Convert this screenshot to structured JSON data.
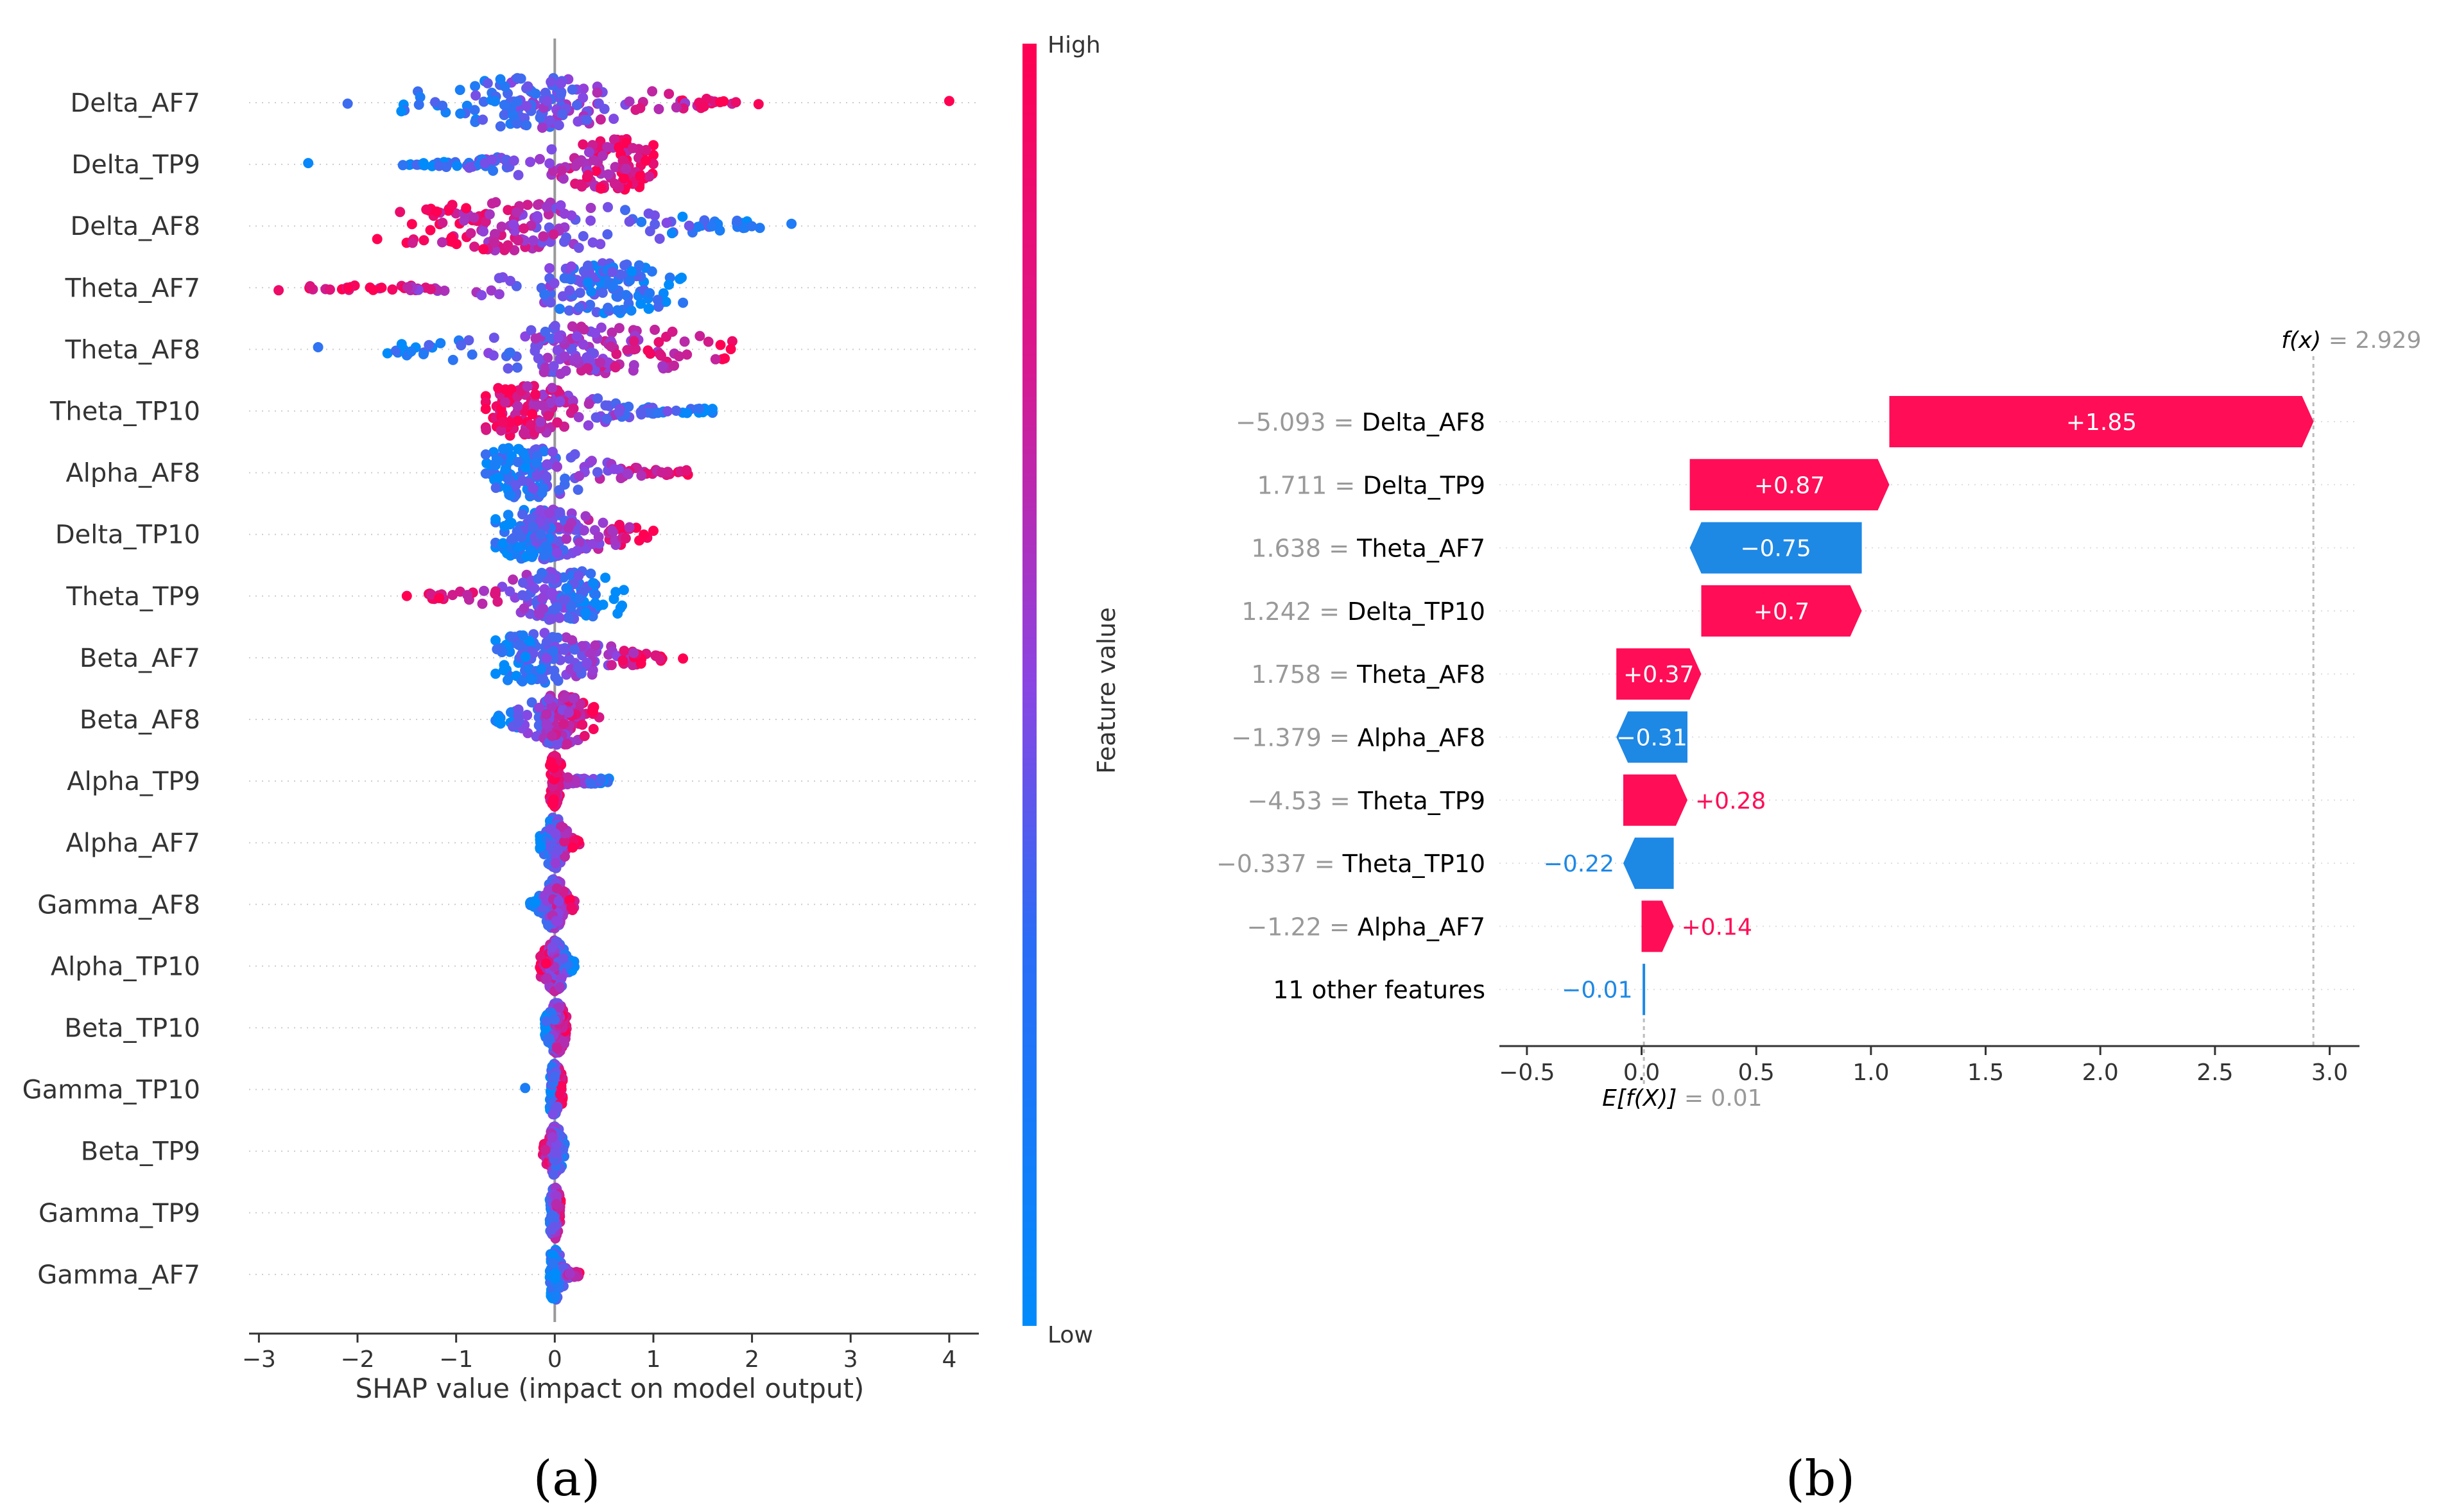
{
  "chart_data": [
    {
      "type": "scatter",
      "subtype": "shap-beeswarm",
      "panel_label": "(a)",
      "features": [
        "Delta_AF7",
        "Delta_TP9",
        "Delta_AF8",
        "Theta_AF7",
        "Theta_AF8",
        "Theta_TP10",
        "Alpha_AF8",
        "Delta_TP10",
        "Theta_TP9",
        "Beta_AF7",
        "Beta_AF8",
        "Alpha_TP9",
        "Alpha_AF7",
        "Gamma_AF8",
        "Alpha_TP10",
        "Beta_TP10",
        "Gamma_TP10",
        "Beta_TP9",
        "Gamma_TP9",
        "Gamma_AF7"
      ],
      "distributions": [
        {
          "min": -2.1,
          "max": 4.0,
          "dense_low": -1.6,
          "dense_high": 2.1,
          "center": -0.2,
          "width": 0.45,
          "high_side": "right"
        },
        {
          "min": -2.5,
          "max": 1.0,
          "dense_low": -1.6,
          "dense_high": 0.95,
          "center": 0.6,
          "width": 0.35,
          "high_side": "right"
        },
        {
          "min": -1.8,
          "max": 2.4,
          "dense_low": -1.6,
          "dense_high": 2.1,
          "center": -0.4,
          "width": 0.6,
          "high_side": "left"
        },
        {
          "min": -2.8,
          "max": 1.3,
          "dense_low": -2.5,
          "dense_high": 1.3,
          "center": 0.5,
          "width": 0.4,
          "high_side": "left"
        },
        {
          "min": -2.4,
          "max": 1.8,
          "dense_low": -1.7,
          "dense_high": 1.8,
          "center": 0.3,
          "width": 0.5,
          "high_side": "right"
        },
        {
          "min": -0.7,
          "max": 1.6,
          "dense_low": -0.6,
          "dense_high": 1.6,
          "center": -0.3,
          "width": 0.3,
          "high_side": "left"
        },
        {
          "min": -0.7,
          "max": 1.35,
          "dense_low": -0.7,
          "dense_high": 1.35,
          "center": -0.3,
          "width": 0.3,
          "high_side": "right"
        },
        {
          "min": -0.6,
          "max": 1.0,
          "dense_low": -0.55,
          "dense_high": 0.95,
          "center": -0.15,
          "width": 0.3,
          "high_side": "right"
        },
        {
          "min": -1.5,
          "max": 0.7,
          "dense_low": -1.3,
          "dense_high": 0.7,
          "center": 0.1,
          "width": 0.3,
          "high_side": "left"
        },
        {
          "min": -0.6,
          "max": 1.3,
          "dense_low": -0.55,
          "dense_high": 1.1,
          "center": -0.2,
          "width": 0.3,
          "high_side": "right"
        },
        {
          "min": -0.6,
          "max": 0.45,
          "dense_low": -0.6,
          "dense_high": 0.45,
          "center": 0.05,
          "width": 0.15,
          "high_side": "right"
        },
        {
          "min": -0.05,
          "max": 0.55,
          "dense_low": -0.05,
          "dense_high": 0.55,
          "center": 0.0,
          "width": 0.03,
          "high_side": "left"
        },
        {
          "min": -0.15,
          "max": 0.25,
          "dense_low": -0.15,
          "dense_high": 0.25,
          "center": 0.0,
          "width": 0.05,
          "high_side": "right"
        },
        {
          "min": -0.25,
          "max": 0.2,
          "dense_low": -0.25,
          "dense_high": 0.2,
          "center": 0.0,
          "width": 0.05,
          "high_side": "right"
        },
        {
          "min": -0.15,
          "max": 0.2,
          "dense_low": -0.15,
          "dense_high": 0.2,
          "center": 0.0,
          "width": 0.05,
          "high_side": "left"
        },
        {
          "min": -0.1,
          "max": 0.12,
          "dense_low": -0.1,
          "dense_high": 0.12,
          "center": 0.02,
          "width": 0.04,
          "high_side": "right"
        },
        {
          "min": -0.3,
          "max": 0.08,
          "dense_low": -0.05,
          "dense_high": 0.08,
          "center": 0.0,
          "width": 0.03,
          "high_side": "right"
        },
        {
          "min": -0.12,
          "max": 0.1,
          "dense_low": -0.12,
          "dense_high": 0.1,
          "center": 0.0,
          "width": 0.03,
          "high_side": "left"
        },
        {
          "min": -0.05,
          "max": 0.06,
          "dense_low": -0.05,
          "dense_high": 0.06,
          "center": 0.0,
          "width": 0.02,
          "high_side": "right"
        },
        {
          "min": -0.05,
          "max": 0.25,
          "dense_low": -0.05,
          "dense_high": 0.25,
          "center": 0.0,
          "width": 0.03,
          "high_side": "right"
        }
      ],
      "xlim": [
        -3.1,
        4.3
      ],
      "xticks": [
        "−3",
        "−2",
        "−1",
        "0",
        "1",
        "2",
        "3",
        "4"
      ],
      "xtick_values": [
        -3,
        -2,
        -1,
        0,
        1,
        2,
        3,
        4
      ],
      "xlabel": "SHAP value (impact on model output)",
      "colorbar": {
        "label": "Feature value",
        "high": "High",
        "low": "Low",
        "high_color": "#ff0052",
        "low_color": "#008bfb"
      }
    },
    {
      "type": "bar",
      "subtype": "shap-waterfall",
      "panel_label": "(b)",
      "base_value": 0.01,
      "final_value": 2.929,
      "fx_label": "f(x)",
      "fx_value_text": " = 2.929",
      "ex_label": "E[f(X)]",
      "ex_value_text": " = 0.01",
      "rows": [
        {
          "value_text": "−5.093",
          "feature": "Delta_AF8",
          "contribution": 1.85,
          "label": "+1.85"
        },
        {
          "value_text": "1.711",
          "feature": "Delta_TP9",
          "contribution": 0.87,
          "label": "+0.87"
        },
        {
          "value_text": "1.638",
          "feature": "Theta_AF7",
          "contribution": -0.75,
          "label": "−0.75"
        },
        {
          "value_text": "1.242",
          "feature": "Delta_TP10",
          "contribution": 0.7,
          "label": "+0.7"
        },
        {
          "value_text": "1.758",
          "feature": "Theta_AF8",
          "contribution": 0.37,
          "label": "+0.37"
        },
        {
          "value_text": "−1.379",
          "feature": "Alpha_AF8",
          "contribution": -0.31,
          "label": "−0.31"
        },
        {
          "value_text": "−4.53",
          "feature": "Theta_TP9",
          "contribution": 0.28,
          "label": "+0.28"
        },
        {
          "value_text": "−0.337",
          "feature": "Theta_TP10",
          "contribution": -0.22,
          "label": "−0.22"
        },
        {
          "value_text": "−1.22",
          "feature": "Alpha_AF7",
          "contribution": 0.14,
          "label": "+0.14"
        },
        {
          "value_text": "",
          "feature": "11 other features",
          "contribution": -0.01,
          "label": "−0.01"
        }
      ],
      "eq": " = ",
      "xlim": [
        -0.62,
        3.13
      ],
      "xticks": [
        "−0.5",
        "0.0",
        "0.5",
        "1.0",
        "1.5",
        "2.0",
        "2.5",
        "3.0"
      ],
      "xtick_values": [
        -0.5,
        0.0,
        0.5,
        1.0,
        1.5,
        2.0,
        2.5,
        3.0
      ],
      "positive_color": "#ff0d57",
      "negative_color": "#1e88e5"
    }
  ]
}
